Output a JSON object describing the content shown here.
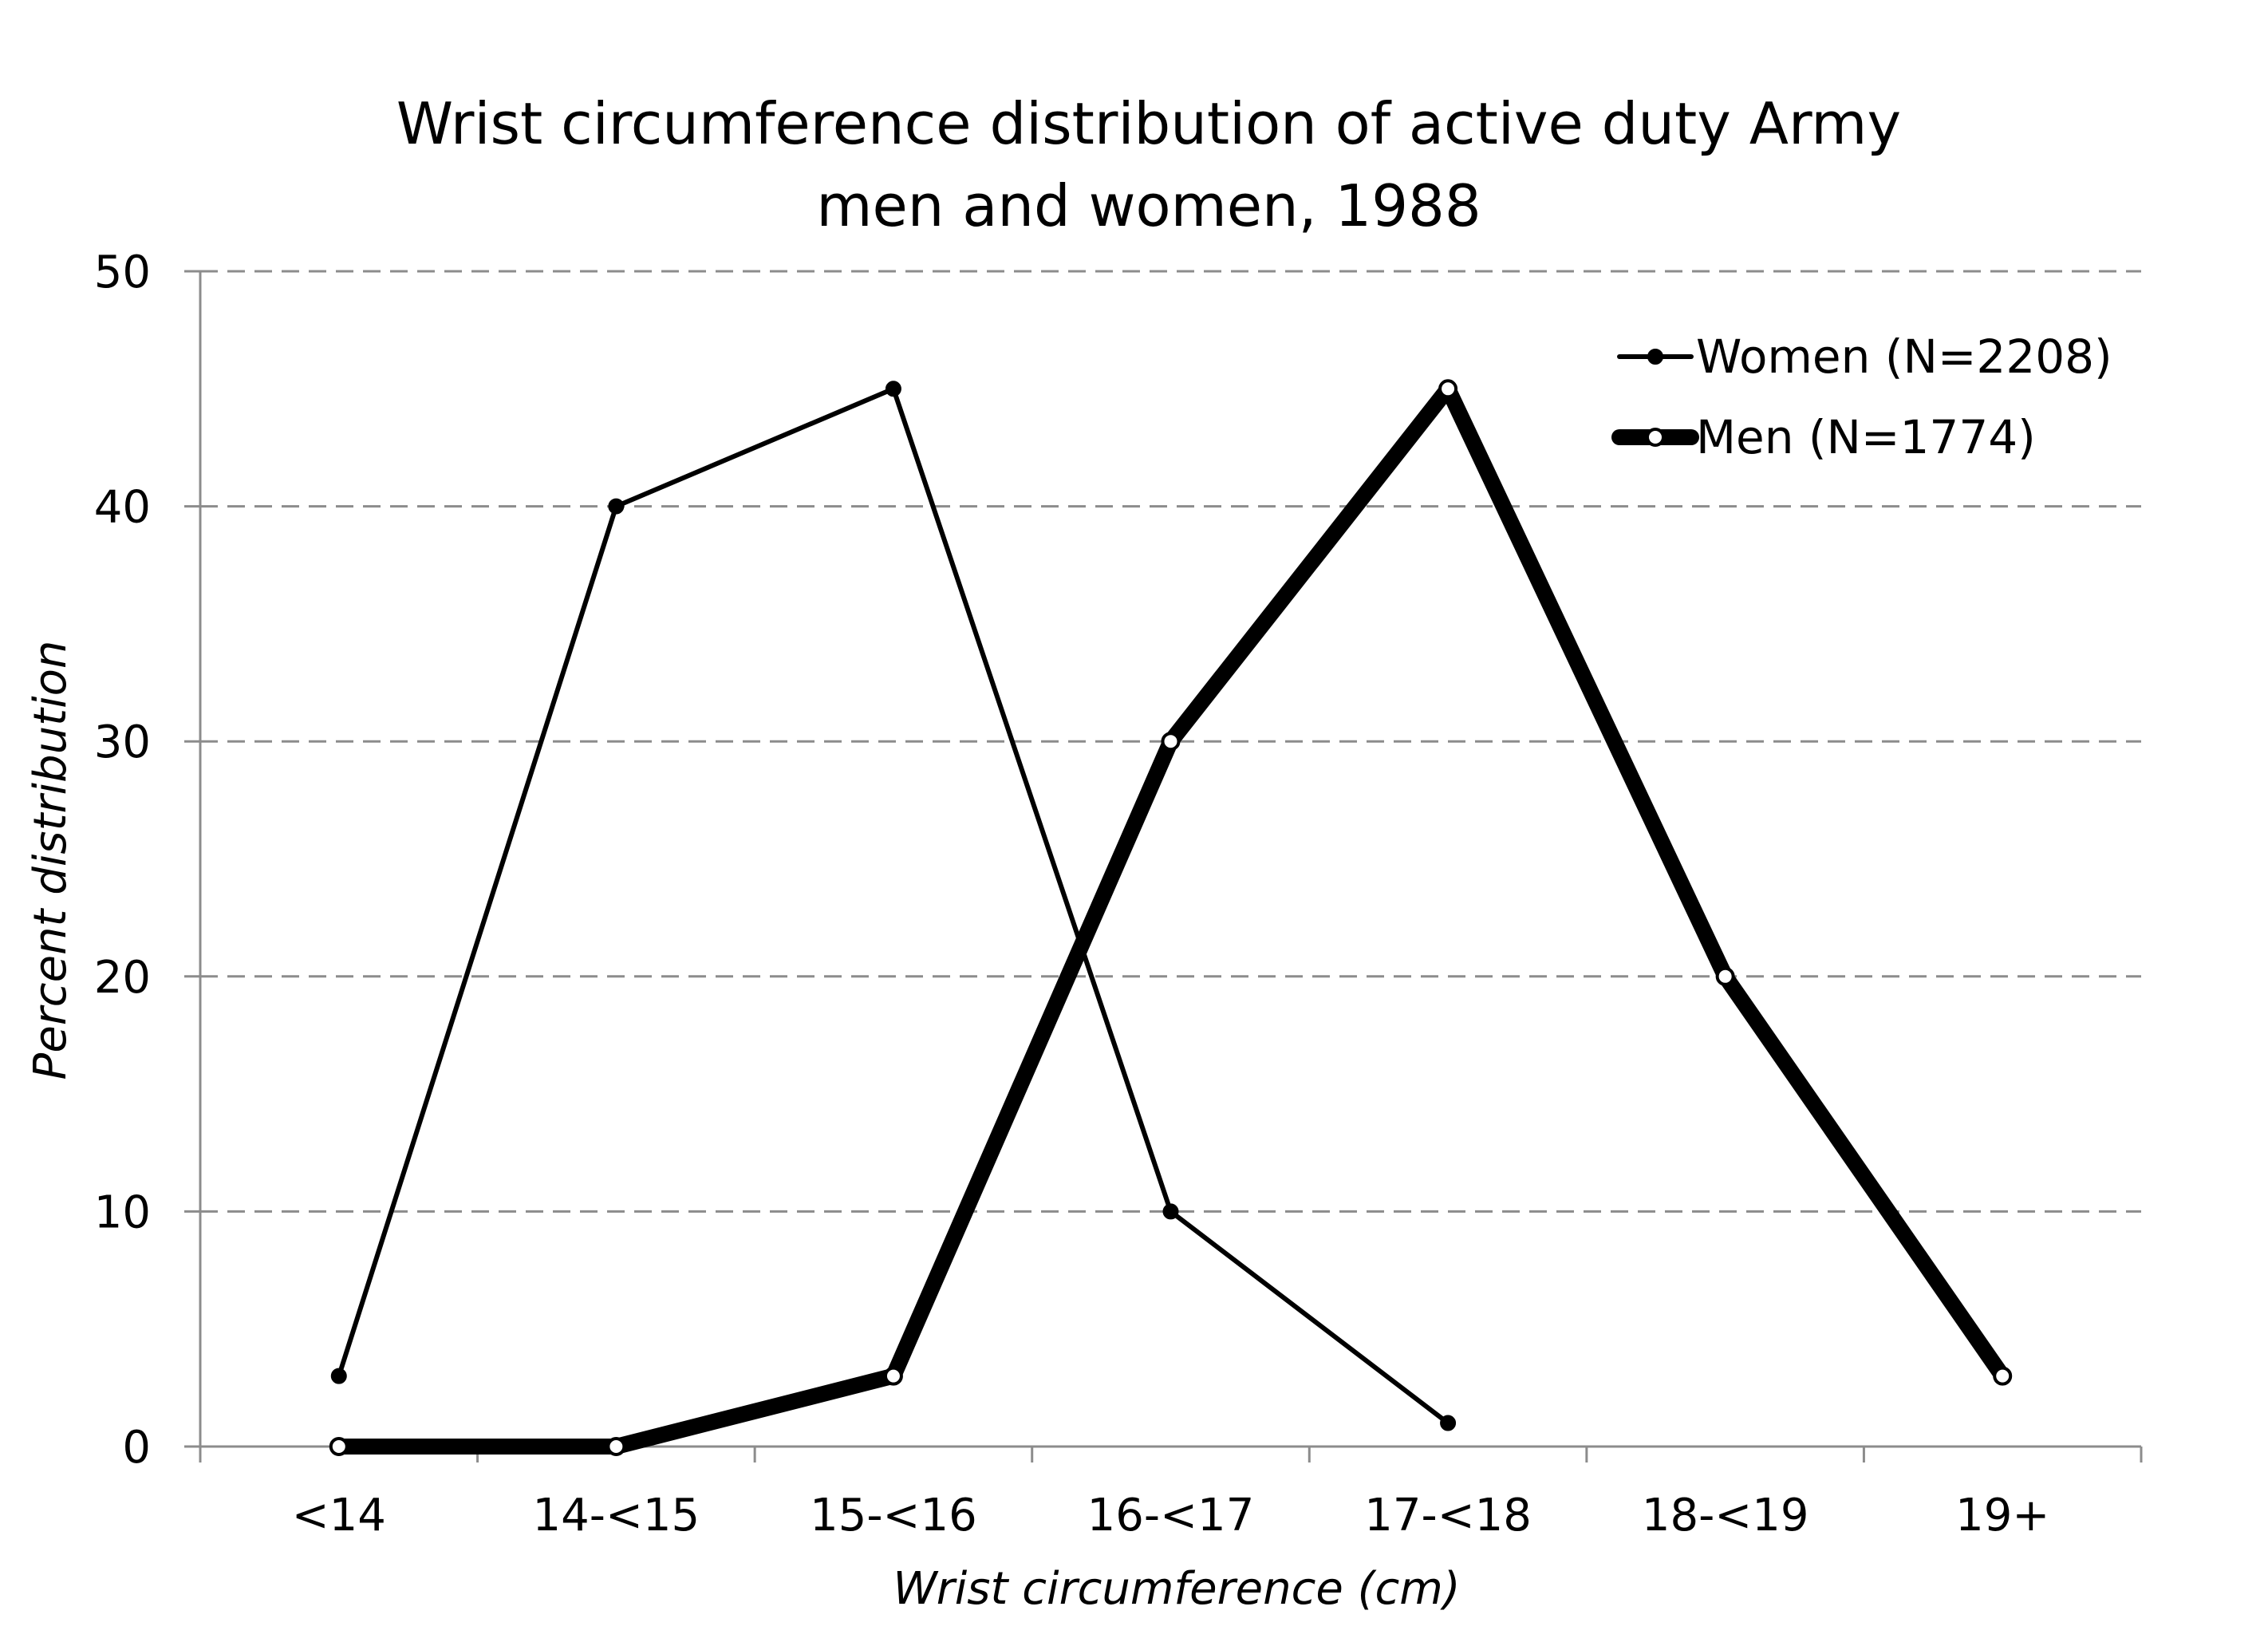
{
  "chart_data": {
    "type": "line",
    "title_line1": "Wrist circumference distribution of active duty Army",
    "title_line2": "men and women, 1988",
    "xlabel": "Wrist circumference (cm)",
    "ylabel": "Percent distribution",
    "categories": [
      "<14",
      "14-<15",
      "15-<16",
      "16-<17",
      "17-<18",
      "18-<19",
      "19+"
    ],
    "ylim": [
      0,
      50
    ],
    "yticks": [
      0,
      10,
      20,
      30,
      40,
      50
    ],
    "grid": true,
    "legend_position": "top-right",
    "series": [
      {
        "name": "Women (N=2208)",
        "values": [
          3,
          40,
          45,
          10,
          1,
          null,
          null
        ],
        "color": "#000000",
        "marker": "filled-circle",
        "line": "thin"
      },
      {
        "name": "Men (N=1774)",
        "values": [
          0,
          0,
          3,
          30,
          45,
          20,
          3
        ],
        "color": "#000000",
        "marker": "open-circle",
        "line": "thick"
      }
    ]
  }
}
